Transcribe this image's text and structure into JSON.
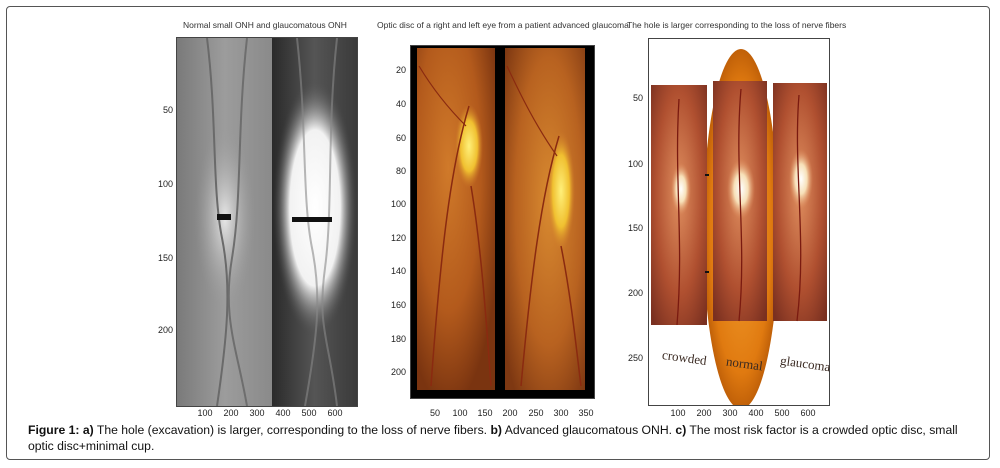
{
  "panels": [
    {
      "title": "Normal small ONH and glaucomatous ONH",
      "y_ticks": [
        "50",
        "100",
        "150",
        "200"
      ],
      "x_ticks": [
        "100",
        "200",
        "300",
        "400",
        "500",
        "600"
      ]
    },
    {
      "title": "Optic disc of a right and left eye from a patient advanced glaucoma",
      "y_ticks": [
        "20",
        "40",
        "60",
        "80",
        "100",
        "120",
        "140",
        "160",
        "180",
        "200"
      ],
      "x_ticks": [
        "50",
        "100",
        "150",
        "200",
        "250",
        "300",
        "350"
      ]
    },
    {
      "title": "The hole is larger corresponding to the loss of nerve fibers",
      "y_ticks": [
        "50",
        "100",
        "150",
        "200",
        "250"
      ],
      "x_ticks": [
        "100",
        "200",
        "300",
        "400",
        "500",
        "600"
      ],
      "image_labels": [
        "crowded",
        "normal",
        "glaucoma"
      ]
    }
  ],
  "caption": {
    "figure_label": "Figure 1:",
    "a_label": "a)",
    "a_text": " The hole (excavation) is larger, corresponding to the loss of nerve fibers. ",
    "b_label": "b)",
    "b_text": " Advanced glaucomatous ONH. ",
    "c_label": "c)",
    "c_text": " The most risk factor is a crowded optic disc, small optic disc+minimal cup."
  }
}
